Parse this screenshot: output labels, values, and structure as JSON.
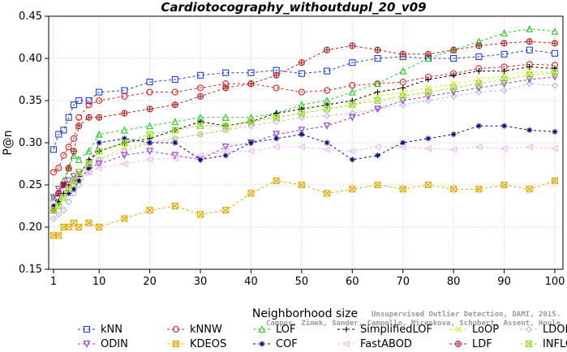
{
  "chart_data": {
    "type": "line",
    "title": "Cardiotocography_withoutdupl_20_v09",
    "xlabel": "Neighborhood size",
    "ylabel": "P@n",
    "xlim": [
      0,
      100
    ],
    "ylim": [
      0.15,
      0.45
    ],
    "x_ticks": [
      "1",
      "10",
      "20",
      "30",
      "40",
      "50",
      "60",
      "70",
      "80",
      "90",
      "100"
    ],
    "y_ticks": [
      "0.15",
      "0.20",
      "0.25",
      "0.30",
      "0.35",
      "0.40",
      "0.45"
    ],
    "grid": true,
    "legend_position": "bottom",
    "credit_lines": [
      "Unsupervised Outlier Detection, DAMI, 2015.",
      "Campos, Zimek, Sander, Campello, Micenkova, Schubert, Assent, Houle"
    ],
    "series": [
      {
        "name": "kNN",
        "color": "#1f3fdc",
        "marker": "square",
        "x": [
          1,
          2,
          3,
          4,
          5,
          6,
          8,
          10,
          15,
          20,
          25,
          30,
          35,
          40,
          45,
          50,
          55,
          60,
          65,
          70,
          75,
          80,
          85,
          90,
          95,
          100
        ],
        "y": [
          0.292,
          0.31,
          0.315,
          0.33,
          0.345,
          0.35,
          0.35,
          0.36,
          0.362,
          0.372,
          0.375,
          0.38,
          0.383,
          0.383,
          0.386,
          0.382,
          0.385,
          0.395,
          0.4,
          0.402,
          0.4,
          0.4,
          0.402,
          0.405,
          0.41,
          0.406
        ]
      },
      {
        "name": "kNNW",
        "color": "#e02020",
        "marker": "circle",
        "x": [
          1,
          2,
          3,
          4,
          5,
          6,
          8,
          10,
          15,
          20,
          25,
          30,
          35,
          40,
          45,
          50,
          55,
          60,
          65,
          70,
          75,
          80,
          85,
          90,
          95,
          100
        ],
        "y": [
          0.265,
          0.27,
          0.285,
          0.295,
          0.305,
          0.33,
          0.345,
          0.35,
          0.355,
          0.36,
          0.36,
          0.365,
          0.37,
          0.37,
          0.365,
          0.36,
          0.362,
          0.368,
          0.37,
          0.372,
          0.378,
          0.382,
          0.388,
          0.39,
          0.393,
          0.392
        ]
      },
      {
        "name": "LOF",
        "color": "#22cc22",
        "marker": "triangle",
        "x": [
          1,
          2,
          3,
          4,
          5,
          6,
          8,
          10,
          15,
          20,
          25,
          30,
          35,
          40,
          45,
          50,
          55,
          60,
          65,
          70,
          75,
          80,
          85,
          90,
          95,
          100
        ],
        "y": [
          0.235,
          0.23,
          0.255,
          0.27,
          0.285,
          0.28,
          0.29,
          0.31,
          0.315,
          0.32,
          0.325,
          0.33,
          0.33,
          0.33,
          0.335,
          0.345,
          0.35,
          0.36,
          0.37,
          0.385,
          0.4,
          0.41,
          0.42,
          0.43,
          0.435,
          0.432
        ]
      },
      {
        "name": "SimplifiedLOF",
        "color": "#000000",
        "marker": "plus",
        "x": [
          1,
          2,
          3,
          4,
          5,
          6,
          8,
          10,
          15,
          20,
          25,
          30,
          35,
          40,
          45,
          50,
          55,
          60,
          65,
          70,
          75,
          80,
          85,
          90,
          95,
          100
        ],
        "y": [
          0.225,
          0.23,
          0.24,
          0.25,
          0.255,
          0.26,
          0.28,
          0.29,
          0.3,
          0.305,
          0.315,
          0.325,
          0.32,
          0.325,
          0.335,
          0.34,
          0.345,
          0.35,
          0.36,
          0.365,
          0.375,
          0.38,
          0.385,
          0.385,
          0.39,
          0.388
        ]
      },
      {
        "name": "LoOP",
        "color": "#e6e620",
        "marker": "x",
        "x": [
          1,
          2,
          3,
          4,
          5,
          6,
          8,
          10,
          15,
          20,
          25,
          30,
          35,
          40,
          45,
          50,
          55,
          60,
          65,
          70,
          75,
          80,
          85,
          90,
          95,
          100
        ],
        "y": [
          0.22,
          0.225,
          0.235,
          0.245,
          0.25,
          0.255,
          0.27,
          0.28,
          0.295,
          0.3,
          0.305,
          0.31,
          0.315,
          0.325,
          0.33,
          0.335,
          0.34,
          0.345,
          0.355,
          0.36,
          0.365,
          0.37,
          0.375,
          0.38,
          0.385,
          0.383
        ]
      },
      {
        "name": "LDOF",
        "color": "#b8b8ee",
        "marker": "diamond",
        "x": [
          1,
          2,
          3,
          4,
          5,
          6,
          8,
          10,
          15,
          20,
          25,
          30,
          35,
          40,
          45,
          50,
          55,
          60,
          65,
          70,
          75,
          80,
          85,
          90,
          95,
          100
        ],
        "y": [
          0.21,
          0.215,
          0.22,
          0.23,
          0.24,
          0.25,
          0.265,
          0.28,
          0.29,
          0.3,
          0.305,
          0.31,
          0.315,
          0.32,
          0.325,
          0.33,
          0.332,
          0.335,
          0.34,
          0.345,
          0.35,
          0.355,
          0.36,
          0.362,
          0.37,
          0.368
        ]
      },
      {
        "name": "ODIN",
        "color": "#9933cc",
        "marker": "triangle-down",
        "x": [
          1,
          2,
          3,
          4,
          5,
          6,
          8,
          10,
          15,
          20,
          25,
          30,
          35,
          40,
          45,
          50,
          55,
          60,
          65,
          70,
          75,
          80,
          85,
          90,
          95,
          100
        ],
        "y": [
          0.235,
          0.245,
          0.25,
          0.255,
          0.26,
          0.265,
          0.27,
          0.275,
          0.285,
          0.29,
          0.285,
          0.28,
          0.295,
          0.3,
          0.31,
          0.315,
          0.32,
          0.33,
          0.34,
          0.35,
          0.355,
          0.36,
          0.365,
          0.37,
          0.375,
          0.378
        ]
      },
      {
        "name": "KDEOS",
        "color": "#e8a800",
        "marker": "square-x",
        "x": [
          1,
          2,
          3,
          4,
          5,
          6,
          8,
          10,
          15,
          20,
          25,
          30,
          35,
          40,
          45,
          50,
          55,
          60,
          65,
          70,
          75,
          80,
          85,
          90,
          95,
          100
        ],
        "y": [
          0.19,
          0.19,
          0.2,
          0.2,
          0.205,
          0.2,
          0.205,
          0.2,
          0.21,
          0.22,
          0.225,
          0.215,
          0.22,
          0.24,
          0.255,
          0.25,
          0.24,
          0.245,
          0.25,
          0.245,
          0.25,
          0.245,
          0.245,
          0.25,
          0.245,
          0.255
        ]
      },
      {
        "name": "COF",
        "color": "#0a0a7a",
        "marker": "star",
        "x": [
          1,
          2,
          3,
          4,
          5,
          6,
          8,
          10,
          15,
          20,
          25,
          30,
          35,
          40,
          45,
          50,
          55,
          60,
          65,
          70,
          75,
          80,
          85,
          90,
          95,
          100
        ],
        "y": [
          0.225,
          0.24,
          0.25,
          0.24,
          0.245,
          0.255,
          0.27,
          0.3,
          0.305,
          0.3,
          0.3,
          0.28,
          0.285,
          0.3,
          0.305,
          0.31,
          0.3,
          0.28,
          0.285,
          0.3,
          0.305,
          0.31,
          0.32,
          0.32,
          0.315,
          0.313
        ]
      },
      {
        "name": "FastABOD",
        "color": "#f2b8f2",
        "marker": "triangle-left",
        "x": [
          1,
          2,
          3,
          4,
          5,
          6,
          8,
          10,
          15,
          20,
          25,
          30,
          35,
          40,
          45,
          50,
          55,
          60,
          65,
          70,
          75,
          80,
          85,
          90,
          95,
          100
        ],
        "y": [
          0.23,
          0.24,
          0.245,
          0.25,
          0.255,
          0.26,
          0.265,
          0.27,
          0.275,
          0.28,
          0.282,
          0.285,
          0.29,
          0.29,
          0.295,
          0.295,
          0.292,
          0.29,
          0.295,
          0.295,
          0.293,
          0.292,
          0.295,
          0.293,
          0.295,
          0.293
        ]
      },
      {
        "name": "LDF",
        "color": "#b82020",
        "marker": "circle-plus",
        "x": [
          1,
          2,
          3,
          4,
          5,
          6,
          8,
          10,
          15,
          20,
          25,
          30,
          35,
          40,
          45,
          50,
          55,
          60,
          65,
          70,
          75,
          80,
          85,
          90,
          95,
          100
        ],
        "y": [
          0.22,
          0.24,
          0.25,
          0.27,
          0.29,
          0.32,
          0.33,
          0.33,
          0.335,
          0.34,
          0.345,
          0.355,
          0.365,
          0.37,
          0.38,
          0.395,
          0.41,
          0.415,
          0.41,
          0.405,
          0.405,
          0.41,
          0.415,
          0.418,
          0.42,
          0.418
        ]
      },
      {
        "name": "INFLO",
        "color": "#99dd33",
        "marker": "square-x",
        "x": [
          1,
          2,
          3,
          4,
          5,
          6,
          8,
          10,
          15,
          20,
          25,
          30,
          35,
          40,
          45,
          50,
          55,
          60,
          65,
          70,
          75,
          80,
          85,
          90,
          95,
          100
        ],
        "y": [
          0.22,
          0.225,
          0.235,
          0.245,
          0.255,
          0.265,
          0.275,
          0.29,
          0.3,
          0.31,
          0.315,
          0.32,
          0.32,
          0.325,
          0.33,
          0.335,
          0.34,
          0.345,
          0.35,
          0.355,
          0.36,
          0.365,
          0.37,
          0.375,
          0.38,
          0.383
        ]
      }
    ]
  }
}
